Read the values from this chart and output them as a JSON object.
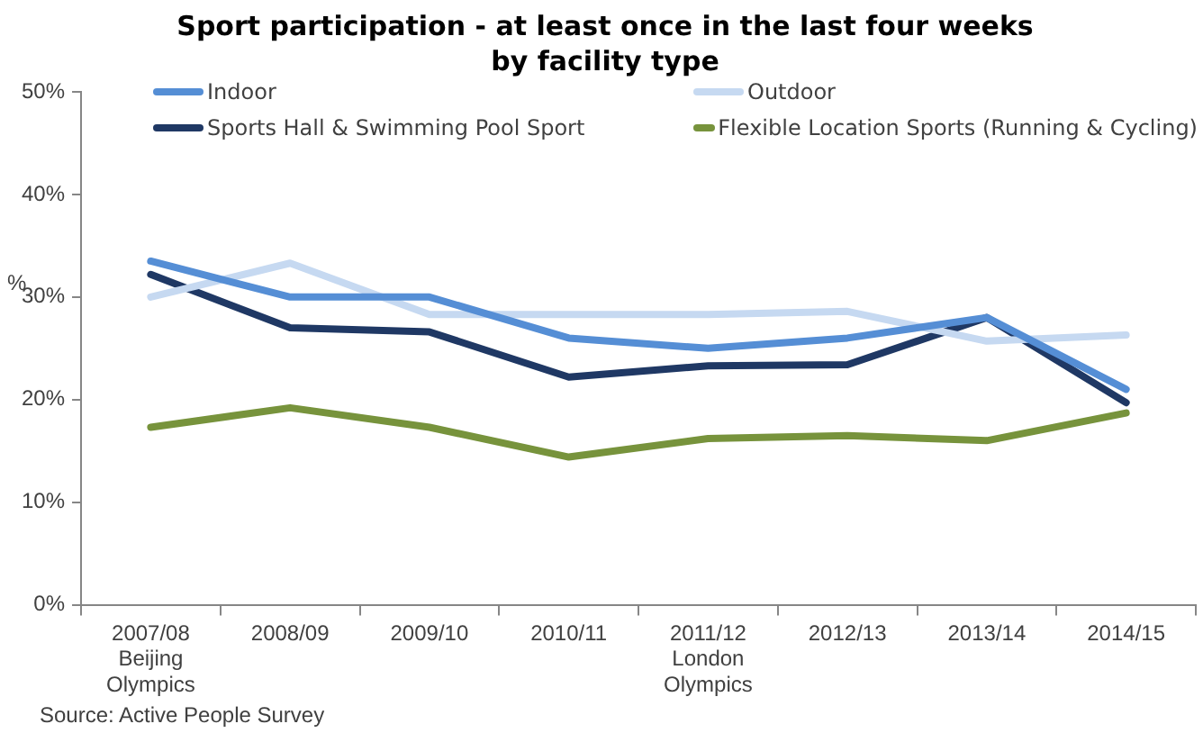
{
  "chart_data": {
    "type": "line",
    "title": "Sport participation - at least once in the last four weeks\nby facility type",
    "ylabel": "%",
    "categories": [
      "2007/08\nBeijing\nOlympics",
      "2008/09",
      "2009/10",
      "2010/11",
      "2011/12\nLondon\nOlympics",
      "2012/13",
      "2013/14",
      "2014/15"
    ],
    "series": [
      {
        "name": "Indoor",
        "color": "#558ed5",
        "values": [
          33.5,
          30,
          30,
          26,
          25,
          26,
          28,
          21
        ]
      },
      {
        "name": "Outdoor",
        "color": "#c6d9f1",
        "values": [
          30,
          33.3,
          28.3,
          28.3,
          28.3,
          28.6,
          25.7,
          26.3
        ]
      },
      {
        "name": "Sports Hall & Swimming Pool Sport",
        "color": "#1f3864",
        "values": [
          32.2,
          27,
          26.6,
          22.2,
          23.3,
          23.4,
          28,
          19.7
        ]
      },
      {
        "name": "Flexible Location Sports (Running & Cycling)",
        "color": "#77933c",
        "values": [
          17.3,
          19.2,
          17.3,
          14.4,
          16.2,
          16.5,
          16,
          18.7
        ]
      }
    ],
    "ylim": [
      0,
      50
    ],
    "yticks": [
      {
        "value": 0,
        "label": "0%"
      },
      {
        "value": 10,
        "label": "10%"
      },
      {
        "value": 20,
        "label": "20%"
      },
      {
        "value": 30,
        "label": "30%"
      },
      {
        "value": 40,
        "label": "40%"
      },
      {
        "value": 50,
        "label": "50%"
      }
    ],
    "grid": false,
    "legend": "top",
    "marker": "none",
    "line_style": "solid",
    "annotations": [
      "Source: Active People Survey"
    ]
  }
}
